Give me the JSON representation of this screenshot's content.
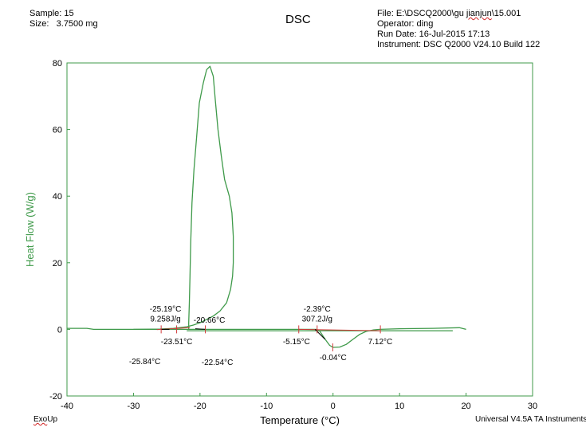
{
  "header": {
    "sample_label": "Sample:",
    "sample_value": "15",
    "size_label": "Size:",
    "size_value": "3.7500 mg",
    "file_prefix": "File: E:\\DSCQ2000\\gu ",
    "file_squiggle": "jianjun",
    "file_suffix": "\\15.001",
    "operator": "Operator: ding",
    "run_date": "Run Date: 16-Jul-2015 17:13",
    "instrument": "Instrument: DSC Q2000 V24.10  Build 122"
  },
  "footer": {
    "exo_prefix": "Exo",
    "exo_suffix": "Up",
    "software": "Universal V4.5A TA Instruments"
  },
  "colors": {
    "curve": "#3f9a4a",
    "baseline": "#d23a3a",
    "tangent": "#000000",
    "axis_title": "#3f9a4a"
  },
  "chart_data": {
    "type": "line",
    "title": "DSC",
    "xlabel": "Temperature (°C)",
    "ylabel": "Heat Flow (W/g)",
    "xlim": [
      -40,
      30
    ],
    "ylim": [
      -20,
      80
    ],
    "xticks": [
      -40,
      -30,
      -20,
      -10,
      0,
      10,
      20,
      30
    ],
    "yticks": [
      -20,
      0,
      20,
      40,
      60,
      80
    ],
    "grid": false,
    "series": [
      {
        "style": "curve",
        "x": [
          -40,
          -37,
          -36,
          -30,
          -26,
          -24,
          -22,
          -21,
          -20,
          -19,
          -18,
          -17,
          -16,
          -15.4,
          -15.1,
          -15,
          -15,
          -15.2,
          -15.6,
          -16.3,
          -16.8,
          -17.3,
          -17.7,
          -18.0,
          -18.5,
          -19,
          -19.5,
          -20.1,
          -20.5,
          -20.9,
          -21.2,
          -21.4,
          -21.5,
          -21.6,
          -21.7,
          -21.7
        ],
        "y": [
          0.3,
          0.3,
          0,
          0,
          0.1,
          0.3,
          0.8,
          1.3,
          2,
          3,
          4,
          5.5,
          8,
          12,
          16,
          20,
          28,
          35,
          40,
          45,
          52,
          60,
          69,
          76,
          79,
          78,
          74,
          68,
          58,
          48,
          38,
          26,
          16,
          8,
          2,
          0
        ]
      },
      {
        "style": "curve",
        "x": [
          -30,
          -20,
          -10,
          -5,
          -2.5,
          -2,
          -1.5,
          -1,
          -0.5,
          0,
          1,
          2,
          3,
          4,
          5,
          6,
          7,
          10,
          15,
          19,
          20
        ],
        "y": [
          0,
          0,
          0,
          0,
          0,
          -0.5,
          -2,
          -3.5,
          -4.8,
          -5.4,
          -5.3,
          -4.5,
          -3,
          -1.5,
          -0.6,
          -0.2,
          0,
          0.2,
          0.3,
          0.5,
          0
        ]
      },
      {
        "style": "curve",
        "x": [
          -22,
          -10,
          0,
          10,
          18
        ],
        "y": [
          -0.4,
          -0.4,
          -0.4,
          -0.4,
          -0.4
        ]
      },
      {
        "style": "baseline",
        "x": [
          -26.5,
          -21.5
        ],
        "y": [
          -0.1,
          0.5
        ]
      },
      {
        "style": "baseline",
        "x": [
          -5.15,
          7.12
        ],
        "y": [
          0,
          -0.4
        ]
      },
      {
        "style": "tangent",
        "x": [
          -25.8,
          -24.6
        ],
        "y": [
          0,
          0
        ]
      },
      {
        "style": "tangent",
        "x": [
          -20.7,
          -19.2
        ],
        "y": [
          0.2,
          0
        ]
      },
      {
        "style": "tangent",
        "x": [
          -2.7,
          -1.2
        ],
        "y": [
          0,
          -3
        ]
      }
    ],
    "markers": [
      {
        "x": -25.84,
        "y": 0
      },
      {
        "x": -23.51,
        "y": 0
      },
      {
        "x": -19.2,
        "y": 0
      },
      {
        "x": -5.15,
        "y": 0
      },
      {
        "x": -2.39,
        "y": 0
      },
      {
        "x": -0.04,
        "y": -5.4
      },
      {
        "x": 7.12,
        "y": 0
      }
    ],
    "annotations": [
      {
        "text": "-25.19°C",
        "x": -25.19,
        "y": 5.3
      },
      {
        "text": "9.258J/g",
        "x": -25.19,
        "y": 2.4
      },
      {
        "text": "-20.66°C",
        "x": -18.6,
        "y": 2.0
      },
      {
        "text": "-23.51°C",
        "x": -23.51,
        "y": -4.4
      },
      {
        "text": "-25.84°C",
        "x": -28.3,
        "y": -10.4
      },
      {
        "text": "-22.54°C",
        "x": -17.4,
        "y": -10.7
      },
      {
        "text": "-2.39°C",
        "x": -2.39,
        "y": 5.3
      },
      {
        "text": "307.2J/g",
        "x": -2.39,
        "y": 2.4
      },
      {
        "text": "-5.15°C",
        "x": -5.5,
        "y": -4.4
      },
      {
        "text": "-0.04°C",
        "x": 0,
        "y": -9.2
      },
      {
        "text": "7.12°C",
        "x": 7.1,
        "y": -4.4
      }
    ]
  }
}
